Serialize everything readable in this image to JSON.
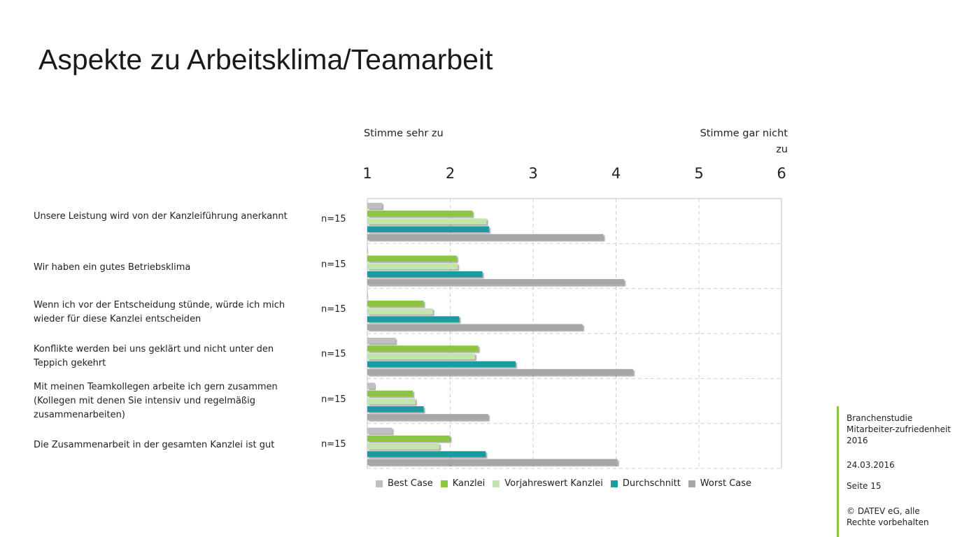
{
  "title": "Aspekte zu Arbeitsklima/Teamarbeit",
  "scale_anchor_left": "Stimme sehr zu",
  "scale_anchor_right": "Stimme gar nicht zu",
  "footer": {
    "study": "Branchenstudie Mitarbeiter-zufriedenheit 2016",
    "date": "24.03.2016",
    "page": "Seite 15",
    "copyright": "© DATEV eG, alle Rechte vorbehalten"
  },
  "colors": {
    "best_case": "#bfbfbf",
    "kanzlei": "#8cc63f",
    "vorjahr": "#c5e3ac",
    "durchschnitt": "#1e9aa0",
    "worst_case": "#a6a6a6",
    "grid": "#cfcfcf"
  },
  "chart_data": {
    "type": "bar",
    "orientation": "horizontal",
    "title": "Aspekte zu Arbeitsklima/Teamarbeit",
    "xlim": [
      1,
      6
    ],
    "x_ticks": [
      1,
      2,
      3,
      4,
      5,
      6
    ],
    "grid": true,
    "legend_position": "bottom",
    "categories": [
      "Unsere Leistung wird von der Kanzleiführung anerkannt",
      "Wir haben ein gutes Betriebsklima",
      "Wenn ich vor der Entscheidung stünde, würde ich mich wieder für diese Kanzlei entscheiden",
      "Konflikte werden bei uns geklärt und nicht unter den Teppich gekehrt",
      "Mit meinen Teamkollegen arbeite ich gern zusammen (Kollegen mit denen Sie intensiv und regelmäßig zusammenarbeiten)",
      "Die Zusammenarbeit in der gesamten Kanzlei ist gut"
    ],
    "n_labels": [
      "n=15",
      "n=15",
      "n=15",
      "n=15",
      "n=15",
      "n=15"
    ],
    "series": [
      {
        "name": "Best Case",
        "color": "#bfbfbf",
        "values": [
          1.18,
          1.01,
          1.01,
          1.34,
          1.09,
          1.3
        ]
      },
      {
        "name": "Kanzlei",
        "color": "#8cc63f",
        "values": [
          2.27,
          2.08,
          1.68,
          2.34,
          1.55,
          2.0
        ]
      },
      {
        "name": "Vorjahreswert Kanzlei",
        "color": "#c5e3ac",
        "values": [
          2.44,
          2.09,
          1.79,
          2.3,
          1.58,
          1.87
        ]
      },
      {
        "name": "Durchschnitt",
        "color": "#1e9aa0",
        "values": [
          2.47,
          2.39,
          2.11,
          2.79,
          1.68,
          2.43
        ]
      },
      {
        "name": "Worst Case",
        "color": "#a6a6a6",
        "values": [
          3.85,
          4.1,
          3.6,
          4.21,
          2.46,
          4.02
        ]
      }
    ]
  }
}
